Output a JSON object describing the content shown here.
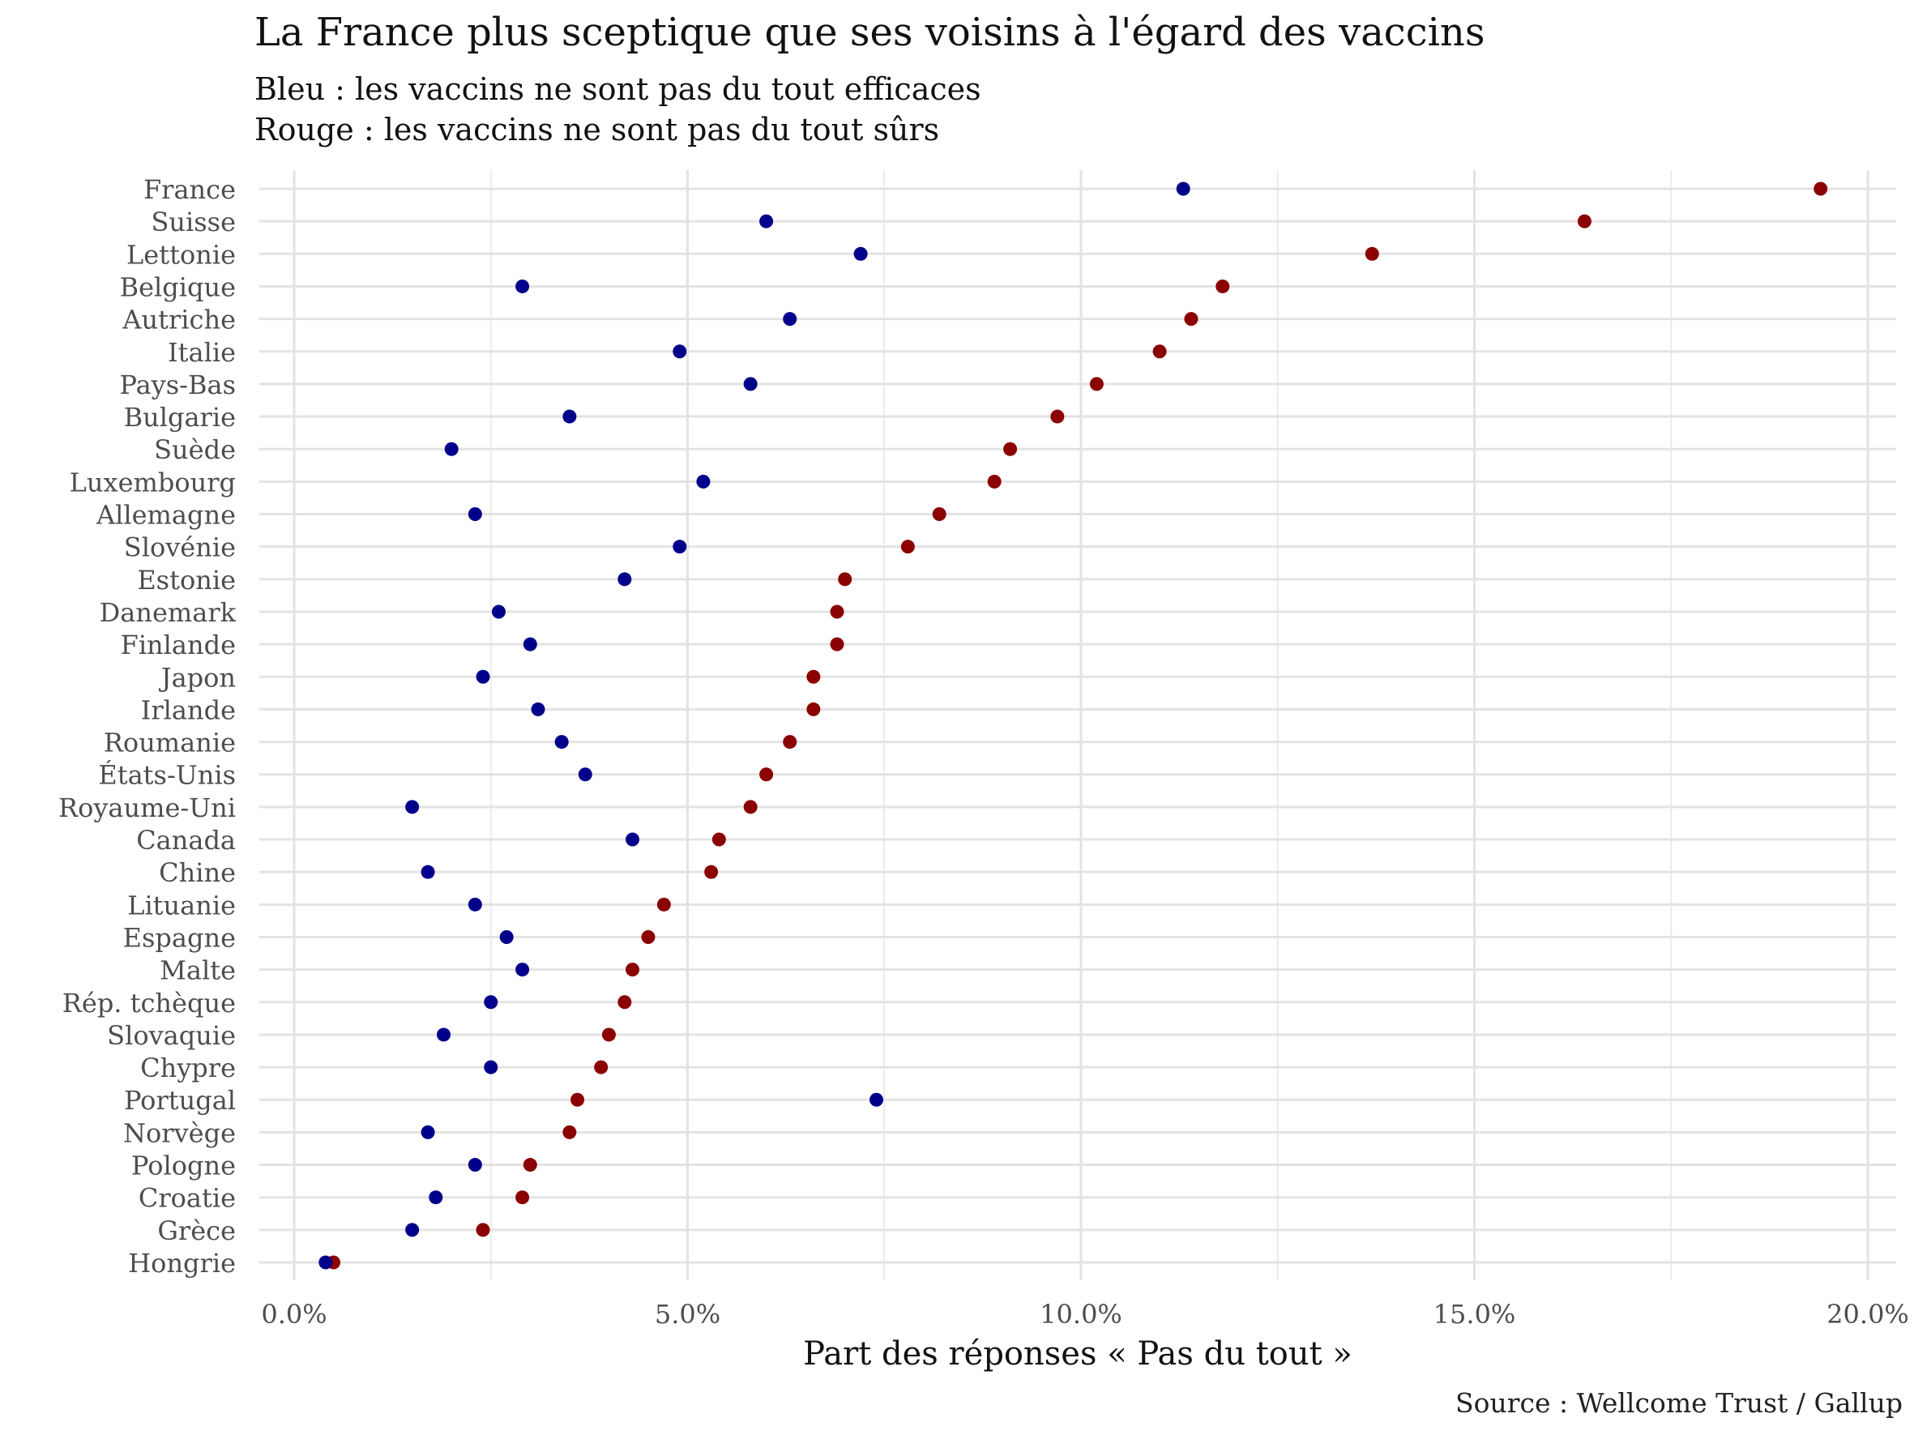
{
  "chart_data": {
    "type": "scatter",
    "title": "La France plus sceptique que ses voisins à l'égard des vaccins",
    "subtitle_lines": [
      "Bleu : les vaccins ne sont pas du tout efficaces",
      "Rouge : les vaccins ne sont pas du tout sûrs"
    ],
    "xlabel": "Part des réponses « Pas du tout »",
    "ylabel": "",
    "caption": "Source : Wellcome Trust / Gallup",
    "xlim": [
      0,
      0.2
    ],
    "x_ticks": [
      0,
      0.05,
      0.1,
      0.15,
      0.2
    ],
    "x_tick_labels": [
      "0.0%",
      "5.0%",
      "10.0%",
      "15.0%",
      "20.0%"
    ],
    "grid": true,
    "legend": "none",
    "categories": [
      "France",
      "Suisse",
      "Lettonie",
      "Belgique",
      "Autriche",
      "Italie",
      "Pays-Bas",
      "Bulgarie",
      "Suède",
      "Luxembourg",
      "Allemagne",
      "Slovénie",
      "Estonie",
      "Danemark",
      "Finlande",
      "Japon",
      "Irlande",
      "Roumanie",
      "États-Unis",
      "Royaume-Uni",
      "Canada",
      "Chine",
      "Lituanie",
      "Espagne",
      "Malte",
      "Rép. tchèque",
      "Slovaquie",
      "Chypre",
      "Portugal",
      "Norvège",
      "Pologne",
      "Croatie",
      "Grèce",
      "Hongrie"
    ],
    "series": [
      {
        "color": "#00008b",
        "values": [
          0.113,
          0.06,
          0.072,
          0.029,
          0.063,
          0.049,
          0.058,
          0.035,
          0.02,
          0.052,
          0.023,
          0.049,
          0.042,
          0.026,
          0.03,
          0.024,
          0.031,
          0.034,
          0.037,
          0.015,
          0.043,
          0.017,
          0.023,
          0.027,
          0.029,
          0.025,
          0.019,
          0.025,
          0.074,
          0.017,
          0.023,
          0.018,
          0.015,
          0.004
        ]
      },
      {
        "color": "#8b0000",
        "values": [
          0.194,
          0.164,
          0.137,
          0.118,
          0.114,
          0.11,
          0.102,
          0.097,
          0.091,
          0.089,
          0.082,
          0.078,
          0.07,
          0.069,
          0.069,
          0.066,
          0.066,
          0.063,
          0.06,
          0.058,
          0.054,
          0.053,
          0.047,
          0.045,
          0.043,
          0.042,
          0.04,
          0.039,
          0.036,
          0.035,
          0.03,
          0.029,
          0.024,
          0.005
        ]
      }
    ]
  }
}
